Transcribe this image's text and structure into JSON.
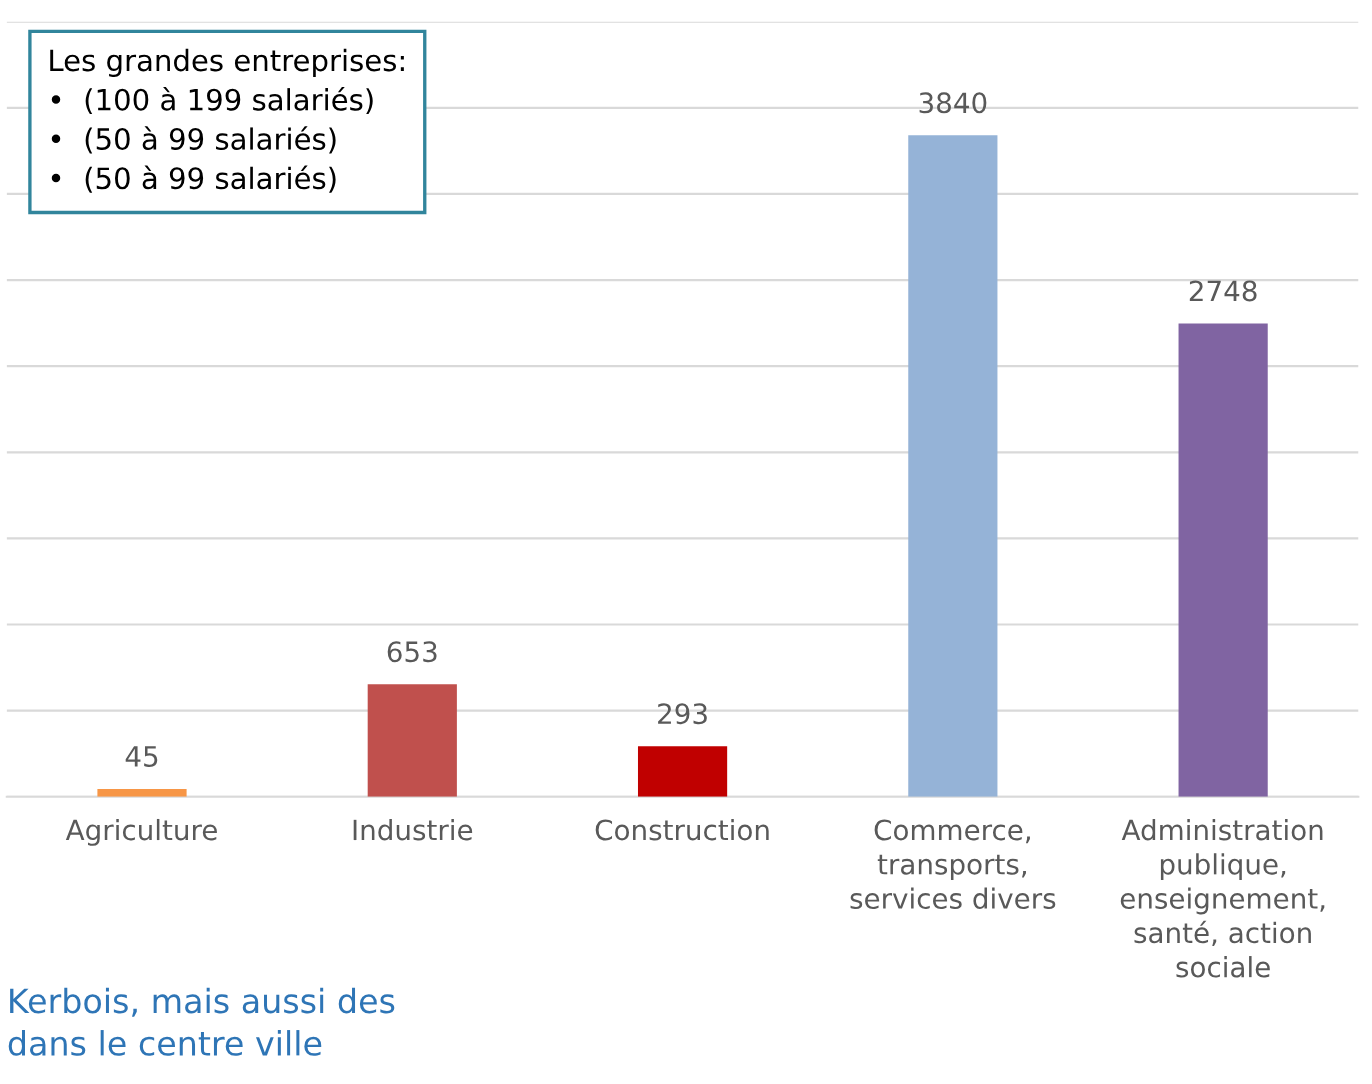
{
  "chart_data": {
    "type": "bar",
    "categories": [
      "Agriculture",
      "Industrie",
      "Construction",
      "Commerce,\ntransports,\nservices divers",
      "Administration\npublique,\nenseignement,\nsanté, action\nsociale"
    ],
    "values": [
      45,
      653,
      293,
      3840,
      2748
    ],
    "colors": [
      "#f79646",
      "#c0504d",
      "#c00000",
      "#95b3d7",
      "#8064a2"
    ],
    "data_labels": true,
    "ylim": [
      0,
      4500
    ],
    "yticks": [
      {
        "value": 0,
        "label": null
      },
      {
        "value": 500,
        "label": null
      },
      {
        "value": 1000,
        "label": null
      },
      {
        "value": 1500,
        "label": null
      },
      {
        "value": 2000,
        "label": null
      },
      {
        "value": 2500,
        "label": null
      },
      {
        "value": 3000,
        "label": null
      },
      {
        "value": 3500,
        "label": null
      },
      {
        "value": 4000,
        "label": null
      },
      {
        "value": 4500,
        "label": null
      }
    ],
    "grid": "y",
    "annotations": [
      "Les grandes entreprises:",
      "•  (100 à 199 salariés)",
      "•  (50 à 99 salariés)",
      "•  (50 à 99 salariés)",
      "Kerbois, mais aussi des\ndans le centre ville"
    ]
  }
}
